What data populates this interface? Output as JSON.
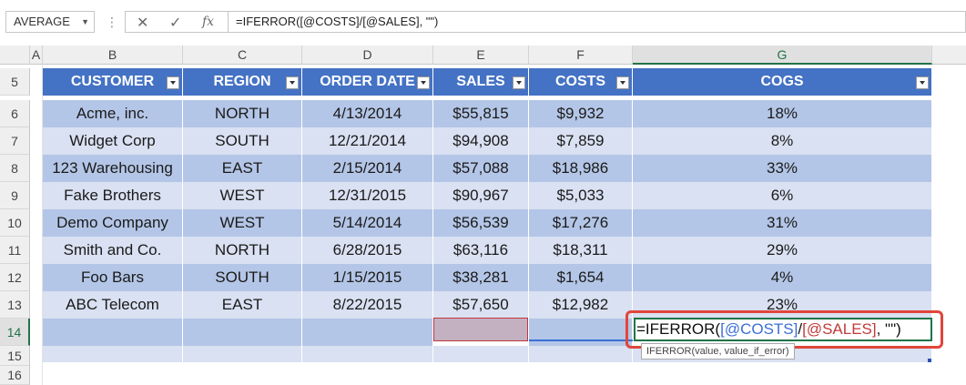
{
  "formula_bar": {
    "name_box": "AVERAGE",
    "cancel_icon": "✕",
    "enter_icon": "✓",
    "fx_label": "fx",
    "formula": "=IFERROR([@COSTS]/[@SALES], \"\")"
  },
  "columns": [
    "A",
    "B",
    "C",
    "D",
    "E",
    "F",
    "G"
  ],
  "rows": [
    "5",
    "6",
    "7",
    "8",
    "9",
    "10",
    "11",
    "12",
    "13",
    "14",
    "15",
    "16"
  ],
  "table": {
    "headers": [
      "CUSTOMER",
      "REGION",
      "ORDER DATE",
      "SALES",
      "COSTS",
      "COGS"
    ],
    "data": [
      [
        "Acme, inc.",
        "NORTH",
        "4/13/2014",
        "$55,815",
        "$9,932",
        "18%"
      ],
      [
        "Widget Corp",
        "SOUTH",
        "12/21/2014",
        "$94,908",
        "$7,859",
        "8%"
      ],
      [
        "123 Warehousing",
        "EAST",
        "2/15/2014",
        "$57,088",
        "$18,986",
        "33%"
      ],
      [
        "Fake Brothers",
        "WEST",
        "12/31/2015",
        "$90,967",
        "$5,033",
        "6%"
      ],
      [
        "Demo Company",
        "WEST",
        "5/14/2014",
        "$56,539",
        "$17,276",
        "31%"
      ],
      [
        "Smith and Co.",
        "NORTH",
        "6/28/2015",
        "$63,116",
        "$18,311",
        "29%"
      ],
      [
        "Foo Bars",
        "SOUTH",
        "1/15/2015",
        "$38,281",
        "$1,654",
        "4%"
      ],
      [
        "ABC Telecom",
        "EAST",
        "8/22/2015",
        "$57,650",
        "$12,982",
        "23%"
      ]
    ]
  },
  "edit_cell": {
    "prefix": "=IFERROR(",
    "ref1": "[@COSTS]",
    "slash": "/",
    "ref2": "[@SALES]",
    "suffix": ", \"\")"
  },
  "tooltip": "IFERROR(value, value_if_error)",
  "colors": {
    "header_bg": "#4472c4",
    "band_dark": "#b4c6e7",
    "band_light": "#d9e1f2",
    "highlight_border": "#e0463a",
    "active_cell": "#217346"
  }
}
